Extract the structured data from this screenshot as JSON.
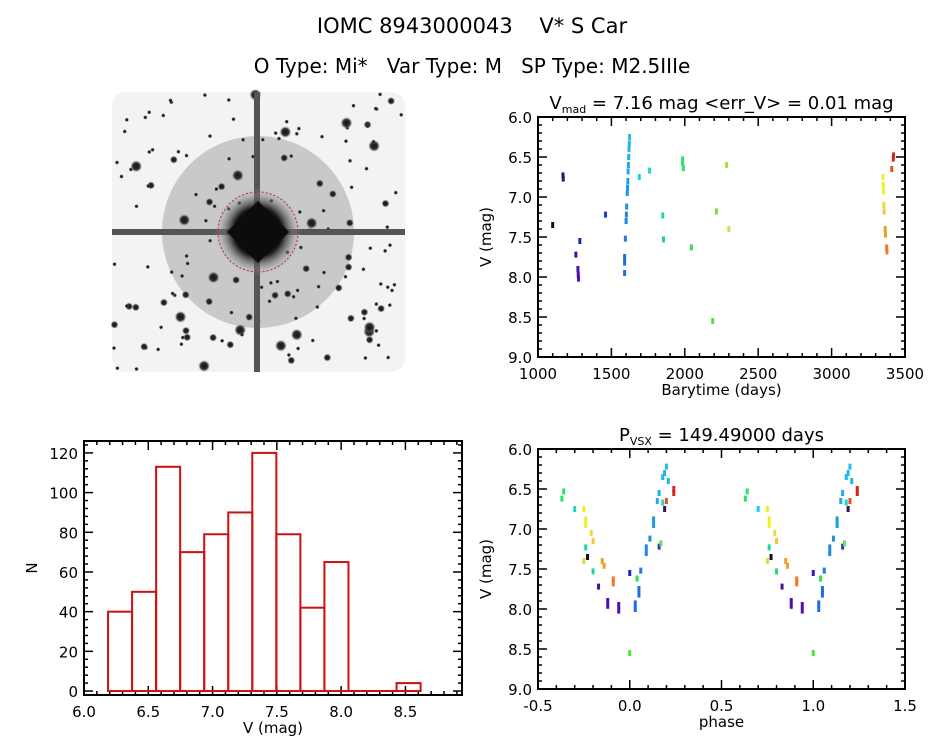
{
  "header": {
    "title": "IOMC 8943000043    V* S Car",
    "subtitle": "O Type: Mi*   Var Type: M   SP Type: M2.5IIIe"
  },
  "image_panel": {
    "icon": "sky-image-finder-chart"
  },
  "chart_data": [
    {
      "id": "lightcurve",
      "type": "scatter",
      "title_main": "V",
      "title_sub": "mad",
      "title_rest": " = 7.16 mag <err_V> = 0.01 mag",
      "xlabel": "Barytime (days)",
      "ylabel": "V (mag)",
      "xlim": [
        1000,
        3500
      ],
      "ylim": [
        9.0,
        6.0
      ],
      "y_inverted": true,
      "xticks": [
        "1000",
        "1500",
        "2000",
        "2500",
        "3000",
        "3500"
      ],
      "yticks": [
        "6.0",
        "6.5",
        "7.0",
        "7.5",
        "8.0",
        "8.5",
        "9.0"
      ],
      "points": [
        [
          1100,
          7.35,
          "#1a0a2a"
        ],
        [
          1170,
          6.73,
          "#3a1060"
        ],
        [
          1172,
          6.77,
          "#3a1060"
        ],
        [
          1258,
          7.72,
          "#4a10a0"
        ],
        [
          1272,
          7.9,
          "#4a10b0"
        ],
        [
          1274,
          7.97,
          "#4a10b0"
        ],
        [
          1276,
          8.02,
          "#4a10b0"
        ],
        [
          1285,
          7.55,
          "#2020c0"
        ],
        [
          1460,
          7.22,
          "#1e3ad0"
        ],
        [
          1590,
          7.75,
          "#1e6ee0"
        ],
        [
          1590,
          7.82,
          "#1e6ee0"
        ],
        [
          1590,
          7.95,
          "#1e6ee0"
        ],
        [
          1595,
          7.52,
          "#1e78e0"
        ],
        [
          1600,
          7.3,
          "#2088e0"
        ],
        [
          1602,
          7.22,
          "#2088e0"
        ],
        [
          1604,
          7.12,
          "#2090e0"
        ],
        [
          1608,
          6.95,
          "#2098e0"
        ],
        [
          1610,
          6.88,
          "#2098e0"
        ],
        [
          1612,
          6.8,
          "#20a0e0"
        ],
        [
          1614,
          6.68,
          "#20a8e8"
        ],
        [
          1616,
          6.6,
          "#20a8e8"
        ],
        [
          1618,
          6.5,
          "#20b0e8"
        ],
        [
          1620,
          6.4,
          "#20b8e8"
        ],
        [
          1622,
          6.33,
          "#20b8e8"
        ],
        [
          1624,
          6.25,
          "#20c0e8"
        ],
        [
          1690,
          6.75,
          "#20d0e0"
        ],
        [
          1760,
          6.67,
          "#20d8c8"
        ],
        [
          1850,
          7.23,
          "#20d8a0"
        ],
        [
          1855,
          7.53,
          "#20d890"
        ],
        [
          1985,
          6.53,
          "#30e070"
        ],
        [
          1985,
          6.57,
          "#30e070"
        ],
        [
          1990,
          6.64,
          "#30e070"
        ],
        [
          2045,
          7.63,
          "#30e050"
        ],
        [
          2190,
          8.55,
          "#50e040"
        ],
        [
          2215,
          7.18,
          "#70e040"
        ],
        [
          2285,
          6.6,
          "#a0e040"
        ],
        [
          2300,
          7.4,
          "#c8e840"
        ],
        [
          3350,
          6.75,
          "#f0f020"
        ],
        [
          3352,
          6.85,
          "#f0f020"
        ],
        [
          3354,
          6.93,
          "#f0f020"
        ],
        [
          3356,
          7.1,
          "#f0d840"
        ],
        [
          3358,
          7.18,
          "#f0c840"
        ],
        [
          3365,
          7.4,
          "#f0a020"
        ],
        [
          3367,
          7.47,
          "#f0a020"
        ],
        [
          3375,
          7.63,
          "#f07820"
        ],
        [
          3377,
          7.68,
          "#f07820"
        ],
        [
          3410,
          6.65,
          "#e05020"
        ],
        [
          3420,
          6.52,
          "#d02818"
        ],
        [
          3422,
          6.48,
          "#d02818"
        ]
      ]
    },
    {
      "id": "histogram",
      "type": "bar",
      "xlabel": "V (mag)",
      "ylabel": "N",
      "xlim": [
        6.0,
        8.94
      ],
      "ylim": [
        -2,
        126
      ],
      "xticks": [
        "6.0",
        "6.5",
        "7.0",
        "7.5",
        "8.0",
        "8.5"
      ],
      "yticks": [
        "0",
        "20",
        "40",
        "60",
        "80",
        "100",
        "120"
      ],
      "bar_color": "#cc1111",
      "bin_edges": [
        6.187,
        6.374,
        6.561,
        6.748,
        6.935,
        7.122,
        7.309,
        7.496,
        7.683,
        7.87,
        8.057,
        8.244,
        8.431,
        8.618
      ],
      "values": [
        40,
        50,
        113,
        70,
        79,
        90,
        120,
        79,
        42,
        65,
        0,
        0,
        4
      ]
    },
    {
      "id": "phase",
      "type": "scatter",
      "title_main": "P",
      "title_sub": "VSX",
      "title_rest": " = 149.49000 days",
      "xlabel": "phase",
      "ylabel": "V (mag)",
      "xlim": [
        -0.5,
        1.5
      ],
      "ylim": [
        9.0,
        6.0
      ],
      "y_inverted": true,
      "xticks": [
        "-0.5",
        "0.0",
        "0.5",
        "1.0",
        "1.5"
      ],
      "yticks": [
        "6.0",
        "6.5",
        "7.0",
        "7.5",
        "8.0",
        "8.5",
        "9.0"
      ],
      "repeat_phase": 1,
      "points": [
        [
          -0.36,
          6.53,
          "#30e070"
        ],
        [
          -0.37,
          6.62,
          "#30e070"
        ],
        [
          -0.3,
          6.75,
          "#20d0e0"
        ],
        [
          -0.25,
          6.75,
          "#f0f020"
        ],
        [
          -0.24,
          6.88,
          "#f0f020"
        ],
        [
          -0.24,
          6.95,
          "#f0f020"
        ],
        [
          -0.21,
          7.05,
          "#f0d840"
        ],
        [
          -0.2,
          7.15,
          "#f0c840"
        ],
        [
          -0.24,
          7.23,
          "#20d8a0"
        ],
        [
          -0.25,
          7.4,
          "#c8e840"
        ],
        [
          -0.23,
          7.35,
          "#1a0a2a"
        ],
        [
          -0.2,
          7.53,
          "#20d890"
        ],
        [
          -0.15,
          7.4,
          "#f0a020"
        ],
        [
          -0.14,
          7.46,
          "#f0a020"
        ],
        [
          -0.09,
          7.63,
          "#f07820"
        ],
        [
          -0.09,
          7.68,
          "#f07820"
        ],
        [
          -0.17,
          7.72,
          "#4a10a0"
        ],
        [
          -0.12,
          7.9,
          "#4a10b0"
        ],
        [
          -0.12,
          7.96,
          "#4a10b0"
        ],
        [
          -0.06,
          7.95,
          "#4a10b0"
        ],
        [
          -0.06,
          8.02,
          "#4a10b0"
        ],
        [
          0.0,
          7.55,
          "#2020c0"
        ],
        [
          0.0,
          8.55,
          "#50e040"
        ],
        [
          0.03,
          7.93,
          "#1e6ee0"
        ],
        [
          0.03,
          8.0,
          "#1e6ee0"
        ],
        [
          0.04,
          7.62,
          "#30e050"
        ],
        [
          0.05,
          7.75,
          "#1e6ee0"
        ],
        [
          0.05,
          7.82,
          "#1e6ee0"
        ],
        [
          0.06,
          7.52,
          "#1e78e0"
        ],
        [
          0.09,
          7.3,
          "#2088e0"
        ],
        [
          0.09,
          7.23,
          "#2088e0"
        ],
        [
          0.11,
          7.12,
          "#2090e0"
        ],
        [
          0.13,
          6.95,
          "#2098e0"
        ],
        [
          0.13,
          6.88,
          "#2098e0"
        ],
        [
          0.15,
          6.65,
          "#20a8e8"
        ],
        [
          0.16,
          6.55,
          "#20b0e8"
        ],
        [
          0.16,
          7.22,
          "#1e3ad0"
        ],
        [
          0.17,
          7.18,
          "#70e040"
        ],
        [
          0.18,
          6.35,
          "#20b8e8"
        ],
        [
          0.19,
          6.3,
          "#20b8e8"
        ],
        [
          0.2,
          6.22,
          "#20c0e8"
        ],
        [
          0.21,
          6.4,
          "#20b8e8"
        ],
        [
          0.18,
          6.67,
          "#20d8c8"
        ],
        [
          0.19,
          6.75,
          "#3a1060"
        ],
        [
          0.2,
          6.65,
          "#e05020"
        ],
        [
          0.24,
          6.55,
          "#d02818"
        ],
        [
          0.24,
          6.5,
          "#d02818"
        ]
      ]
    }
  ]
}
